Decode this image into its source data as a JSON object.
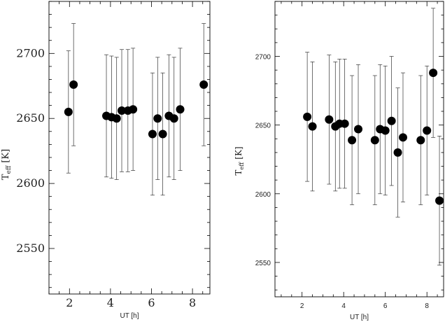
{
  "chart_data": [
    {
      "type": "scatter",
      "xlabel": "UT [h]",
      "ylabel_main": "T",
      "ylabel_sub": "eff",
      "ylabel_unit": "[K]",
      "xlim": [
        1.0,
        8.85
      ],
      "ylim": [
        2515,
        2740
      ],
      "xticks": [
        2,
        4,
        6,
        8
      ],
      "yticks": [
        2550,
        2600,
        2650,
        2700
      ],
      "x": [
        1.95,
        2.2,
        3.8,
        4.05,
        4.3,
        4.55,
        4.85,
        5.1,
        6.05,
        6.3,
        6.55,
        6.85,
        7.1,
        7.4,
        8.55
      ],
      "y": [
        2655,
        2676,
        2652,
        2651,
        2650,
        2656,
        2656,
        2657,
        2638,
        2650,
        2638,
        2652,
        2650,
        2657,
        2676
      ],
      "yerr": [
        47,
        47,
        47,
        47,
        47,
        47,
        47,
        47,
        47,
        47,
        47,
        47,
        47,
        47,
        47
      ]
    },
    {
      "type": "scatter",
      "xlabel": "UT [h]",
      "ylabel_main": "T",
      "ylabel_sub": "eff",
      "ylabel_unit": "[K]",
      "xlim": [
        0.7,
        8.8
      ],
      "ylim": [
        2525,
        2740
      ],
      "xticks": [
        2,
        4,
        6,
        8
      ],
      "yticks": [
        2550,
        2600,
        2650,
        2700
      ],
      "x": [
        2.25,
        2.5,
        3.3,
        3.6,
        3.8,
        4.05,
        4.4,
        4.7,
        5.5,
        5.75,
        6.0,
        6.3,
        6.6,
        6.85,
        7.7,
        8.0,
        8.3,
        8.6
      ],
      "y": [
        2656,
        2649,
        2654,
        2649,
        2651,
        2651,
        2639,
        2647,
        2639,
        2647,
        2646,
        2653,
        2630,
        2641,
        2639,
        2646,
        2688,
        2595
      ],
      "yerr": [
        47,
        47,
        47,
        47,
        47,
        47,
        47,
        47,
        47,
        47,
        47,
        47,
        47,
        47,
        47,
        47,
        47,
        47
      ]
    }
  ]
}
